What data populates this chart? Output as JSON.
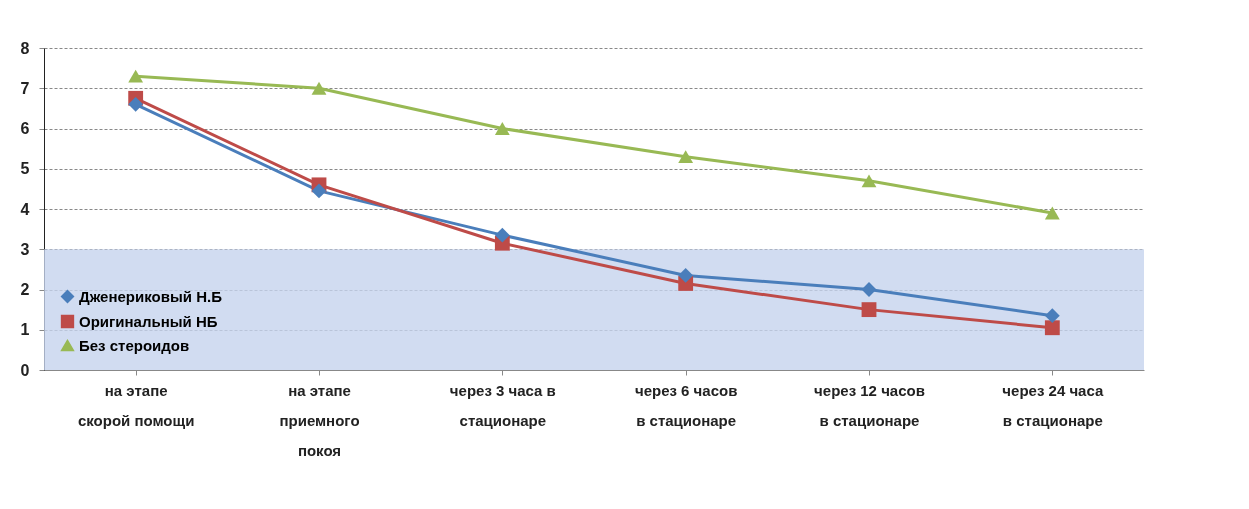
{
  "chart_data": {
    "type": "line",
    "categories": [
      "на этапе скорой помощи",
      "на этапе приемного покоя",
      "через 3 часа в стационаре",
      "через 6 часов в стационаре",
      "через 12 часов в стационаре",
      "через 24 часа в стационаре"
    ],
    "series": [
      {
        "name": "Дженериковый Н.Б",
        "color": "#4a7ebb",
        "marker": "diamond",
        "values": [
          6.6,
          4.45,
          3.35,
          2.35,
          2.0,
          1.35
        ]
      },
      {
        "name": "Оригинальный НБ",
        "color": "#be4b48",
        "marker": "square",
        "values": [
          6.75,
          4.6,
          3.15,
          2.15,
          1.5,
          1.05
        ]
      },
      {
        "name": "Без стероидов",
        "color": "#98b954",
        "marker": "triangle",
        "values": [
          7.3,
          7.0,
          6.0,
          5.3,
          4.7,
          3.9
        ]
      }
    ],
    "ylim": [
      0,
      8
    ],
    "yticks": [
      0,
      1,
      2,
      3,
      4,
      5,
      6,
      7,
      8
    ],
    "grid": "y",
    "legend": "bottom left",
    "bands": [
      {
        "axis": "y",
        "from": 0,
        "to": 3,
        "color": "#c6d3ee"
      }
    ]
  }
}
